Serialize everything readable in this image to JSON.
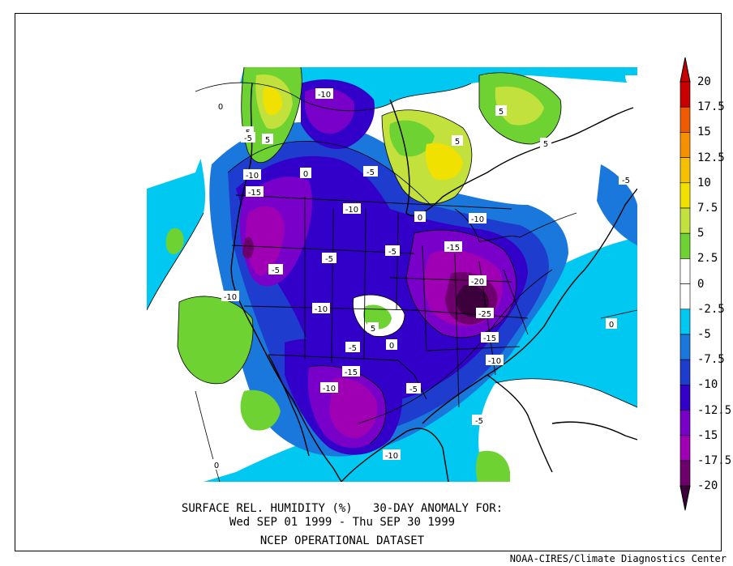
{
  "caption": {
    "line1": "SURFACE REL. HUMIDITY (%)   30-DAY ANOMALY FOR:",
    "line2": "Wed SEP 01 1999 - Thu SEP 30 1999",
    "line3": "NCEP OPERATIONAL DATASET"
  },
  "credit": "NOAA-CIRES/Climate Diagnostics Center",
  "colorbar": {
    "levels": [
      "20",
      "17.5",
      "15",
      "12.5",
      "10",
      "7.5",
      "5",
      "2.5",
      "0",
      "-2.5",
      "-5",
      "-7.5",
      "-10",
      "-12.5",
      "-15",
      "-17.5",
      "-20"
    ],
    "colors": [
      "#c80000",
      "#f05a00",
      "#f59100",
      "#f5c000",
      "#f0e100",
      "#c3e13c",
      "#6ed232",
      "#ffffff",
      "#ffffff",
      "#00c8f0",
      "#1a78dc",
      "#1e3ccd",
      "#3200c8",
      "#7800c8",
      "#a000b4",
      "#6e006e"
    ],
    "top_arrow_color": "#c80000",
    "bottom_arrow_color": "#3c003c"
  },
  "contour_labels": [
    "-10",
    "0",
    "-5",
    "5",
    "-5",
    "5",
    "5",
    "5",
    "-10",
    "-15",
    "-10",
    "-5",
    "-5",
    "-10",
    "-15",
    "-5",
    "-10",
    "-20",
    "-25",
    "-15",
    "-10",
    "-10",
    "5",
    "-5",
    "0",
    "-15",
    "-10",
    "-5",
    "-5",
    "-10",
    "0",
    "0",
    "0",
    "-5",
    "0",
    "-5"
  ]
}
